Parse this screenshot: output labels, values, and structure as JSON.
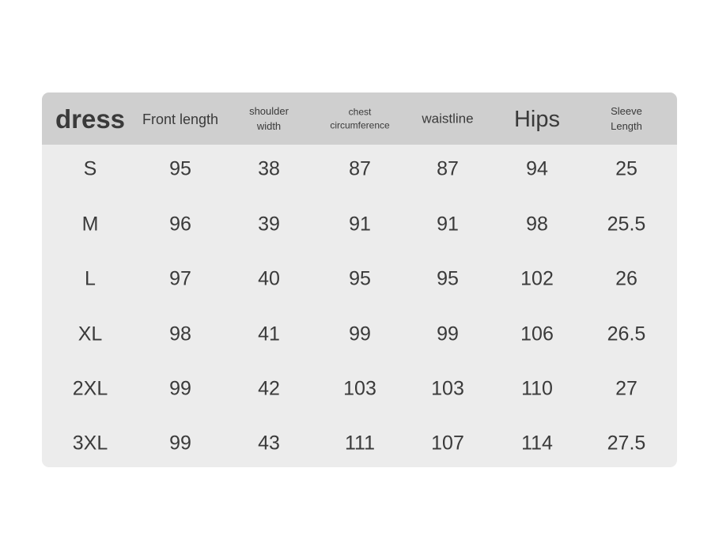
{
  "table": {
    "header": [
      "dress",
      "Front length",
      "shoulder\nwidth",
      "chest\ncircumference",
      "waistline",
      "Hips",
      "Sleeve\nLength"
    ],
    "rows": [
      [
        "S",
        95,
        38,
        87,
        87,
        94,
        25
      ],
      [
        "M",
        96,
        39,
        91,
        91,
        98,
        25.5
      ],
      [
        "L",
        97,
        40,
        95,
        95,
        102,
        26
      ],
      [
        "XL",
        98,
        41,
        99,
        99,
        106,
        26.5
      ],
      [
        "2XL",
        99,
        42,
        103,
        103,
        110,
        27
      ],
      [
        "3XL",
        99,
        43,
        111,
        107,
        114,
        27.5
      ]
    ]
  }
}
